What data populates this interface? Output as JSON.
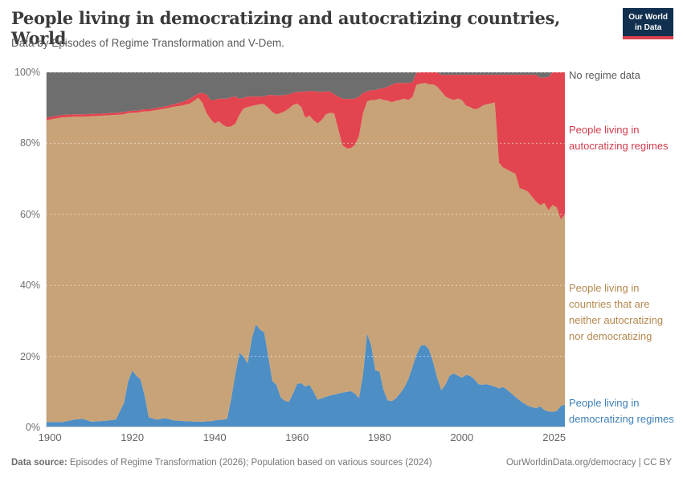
{
  "header": {
    "title": "People living in democratizing and autocratizing countries, World",
    "subtitle": "Data by Episodes of Regime Transformation and V-Dem."
  },
  "logo": {
    "line1": "Our World",
    "line2": "in Data",
    "bg_color": "#11304f",
    "bar_color": "#dc404b"
  },
  "legend": {
    "items": [
      {
        "id": "no_regime_data",
        "label": "No regime data",
        "color": "#5b5b5b"
      },
      {
        "id": "autocratizing",
        "label": "People living in autocratizing regimes",
        "color": "#d23c4c"
      },
      {
        "id": "neither",
        "label": "People living in countries that are neither autocratizing nor democratizing",
        "color": "#b5884e"
      },
      {
        "id": "democratizing",
        "label": "People living in democratizing regimes",
        "color": "#3f80b7"
      }
    ]
  },
  "footer": {
    "source_label": "Data source:",
    "source_text": " Episodes of Regime Transformation (2026); Population based on various sources (2024)",
    "right_text": "OurWorldinData.org/democracy | CC BY"
  },
  "chart_data": {
    "type": "area",
    "stacked": true,
    "title": "People living in democratizing and autocratizing countries, World",
    "unit": "%",
    "ylim": [
      0,
      100
    ],
    "x_range": [
      1899,
      2025
    ],
    "grid": "dashed-horizontal",
    "legend_position": "right",
    "y_ticks": [
      {
        "v": 0,
        "label": "0%"
      },
      {
        "v": 20,
        "label": "20%"
      },
      {
        "v": 40,
        "label": "40%"
      },
      {
        "v": 60,
        "label": "60%"
      },
      {
        "v": 80,
        "label": "80%"
      },
      {
        "v": 100,
        "label": "100%"
      }
    ],
    "x_ticks": [
      {
        "v": 1900,
        "label": "1900"
      },
      {
        "v": 1920,
        "label": "1920"
      },
      {
        "v": 1940,
        "label": "1940"
      },
      {
        "v": 1960,
        "label": "1960"
      },
      {
        "v": 1980,
        "label": "1980"
      },
      {
        "v": 2000,
        "label": "2000"
      },
      {
        "v": 2025,
        "label": "2025"
      }
    ],
    "x_years": [
      1899,
      1903,
      1906,
      1908,
      1910,
      1913,
      1916,
      1918,
      1919,
      1920,
      1921,
      1922,
      1923,
      1924,
      1926,
      1928,
      1930,
      1932,
      1934,
      1936,
      1937,
      1938,
      1939,
      1940,
      1941,
      1942,
      1943,
      1944,
      1945,
      1946,
      1947,
      1948,
      1949,
      1950,
      1951,
      1952,
      1953,
      1954,
      1955,
      1956,
      1957,
      1958,
      1959,
      1960,
      1961,
      1962,
      1963,
      1964,
      1965,
      1966,
      1967,
      1968,
      1969,
      1970,
      1971,
      1972,
      1973,
      1974,
      1975,
      1976,
      1977,
      1978,
      1979,
      1980,
      1981,
      1982,
      1983,
      1984,
      1985,
      1986,
      1987,
      1988,
      1989,
      1990,
      1991,
      1992,
      1993,
      1994,
      1995,
      1996,
      1997,
      1998,
      1999,
      2000,
      2001,
      2002,
      2003,
      2004,
      2005,
      2006,
      2007,
      2008,
      2009,
      2010,
      2011,
      2012,
      2013,
      2014,
      2015,
      2016,
      2017,
      2018,
      2019,
      2020,
      2021,
      2022,
      2023,
      2024,
      2025
    ],
    "series": [
      {
        "id": "democratizing",
        "name": "People living in democratizing regimes",
        "color": "#4d8ec5",
        "values": [
          1.5,
          1.5,
          2.2,
          2.4,
          1.6,
          1.8,
          2.2,
          7,
          13,
          16,
          14.5,
          13.5,
          9,
          2.8,
          2.2,
          2.6,
          2,
          1.8,
          1.7,
          1.6,
          1.6,
          1.7,
          1.7,
          2,
          2.1,
          2.2,
          2.4,
          8,
          15,
          21,
          20,
          18,
          25,
          29,
          27.5,
          26.8,
          20,
          13,
          12,
          8.5,
          7.5,
          7.2,
          9.5,
          12.2,
          12.5,
          11.5,
          12,
          10,
          7.8,
          8.2,
          8.6,
          9,
          9.2,
          9.5,
          9.8,
          10,
          10.2,
          9.6,
          8.2,
          15,
          26.5,
          23,
          16,
          15.8,
          10.5,
          7.6,
          7.4,
          8.2,
          9.6,
          11.2,
          13.6,
          17,
          20.5,
          23,
          23.2,
          22,
          18.5,
          14,
          10.5,
          12,
          14.5,
          15.2,
          14.6,
          14,
          14.8,
          14.5,
          13.6,
          12.2,
          12,
          12.2,
          11.8,
          11.5,
          11,
          11.4,
          10.6,
          9.6,
          8.6,
          7.6,
          6.8,
          6.1,
          5.7,
          5.4,
          5.9,
          4.9,
          4.5,
          4.4,
          4.6,
          6,
          6.4
        ]
      },
      {
        "id": "neither",
        "name": "People living in countries that are neither autocratizing nor democratizing",
        "color": "#c8a377",
        "values": [
          85,
          85.8,
          85.3,
          85.1,
          86,
          86,
          85.8,
          81.2,
          75.5,
          72.6,
          74.1,
          75.3,
          80,
          86.2,
          87.2,
          87.2,
          88.3,
          88.8,
          89.5,
          91.2,
          89.9,
          86.8,
          85.1,
          83.6,
          84.1,
          83,
          82.2,
          76.8,
          70.5,
          67,
          69.8,
          72.2,
          65.5,
          61.8,
          63.5,
          64.2,
          70,
          75.8,
          76.2,
          80,
          81.5,
          82.6,
          81.3,
          79,
          77.7,
          75.7,
          75.8,
          76.5,
          77.8,
          78.4,
          79.6,
          79.6,
          79.2,
          74.5,
          69.7,
          68.6,
          68.4,
          69.9,
          73.8,
          73.5,
          65.3,
          69.2,
          76.2,
          76.8,
          81.7,
          84.4,
          84.2,
          83.8,
          82.6,
          81.4,
          78.6,
          76,
          76,
          73.8,
          73.8,
          74.6,
          78.1,
          82,
          84.1,
          81.2,
          78.1,
          77,
          78,
          78.2,
          75.8,
          75.7,
          76,
          77.6,
          78.6,
          78.8,
          79.4,
          80,
          63.5,
          61.8,
          62,
          62.4,
          62.8,
          59.8,
          60.2,
          60.3,
          59.3,
          58.2,
          56.7,
          58.3,
          56.7,
          58.2,
          57.4,
          52.6,
          53.6
        ]
      },
      {
        "id": "autocratizing",
        "name": "People living in autocratizing regimes",
        "color": "#e2454f",
        "values": [
          0.7,
          0.7,
          0.7,
          0.7,
          0.7,
          0.6,
          0.6,
          0.6,
          0.6,
          0.6,
          0.6,
          0.6,
          0.6,
          0.6,
          0.6,
          0.6,
          0.7,
          1,
          1.4,
          1.2,
          2.7,
          5.3,
          5.4,
          6.6,
          6.4,
          7.4,
          8,
          8.2,
          7.7,
          4.6,
          3,
          3,
          2.7,
          2.4,
          2.2,
          2.2,
          3.6,
          4.8,
          5.3,
          5,
          4.6,
          4,
          3.4,
          3.3,
          4.3,
          7.4,
          6.9,
          8.2,
          8.9,
          7.9,
          6.4,
          6,
          5.4,
          9.2,
          13.1,
          13.9,
          13.9,
          13.1,
          11.2,
          5.7,
          2.8,
          2.8,
          2.8,
          2.8,
          3.3,
          4,
          4.9,
          5,
          4.8,
          4.4,
          4.8,
          4.2,
          3.4,
          3.2,
          3,
          3.4,
          3.4,
          4,
          4.7,
          6.1,
          6.7,
          7.1,
          6.7,
          7.1,
          8.7,
          9.1,
          9.7,
          9.5,
          8.7,
          8.3,
          8.1,
          7.8,
          24.8,
          26.1,
          26.7,
          27.3,
          27.9,
          31.9,
          32.3,
          32.9,
          34.3,
          35.7,
          35.9,
          35.3,
          37.5,
          37.4,
          38,
          41.4,
          40
        ]
      },
      {
        "id": "no_regime_data",
        "name": "No regime data",
        "color": "#6e6e6e",
        "values": [
          12.8,
          12,
          11.8,
          11.8,
          11.7,
          11.6,
          11.4,
          11.2,
          10.9,
          10.8,
          10.8,
          10.6,
          10.4,
          10.4,
          10,
          9.6,
          9,
          8.4,
          7.4,
          6,
          5.8,
          6.2,
          7.8,
          7.8,
          7.4,
          7.4,
          7.4,
          7,
          6.8,
          7.4,
          7.2,
          6.8,
          6.8,
          6.8,
          6.8,
          6.8,
          6.4,
          6.4,
          6.5,
          6.5,
          6.4,
          6.2,
          5.8,
          5.5,
          5.5,
          5.4,
          5.3,
          5.3,
          5.5,
          5.5,
          5.4,
          5.4,
          6.2,
          6.8,
          7.4,
          7.5,
          7.5,
          7.4,
          6.8,
          5.8,
          5.4,
          5,
          5,
          4.6,
          4.5,
          4,
          3.5,
          3,
          3,
          3,
          3,
          2.8,
          0.1,
          0,
          0,
          0,
          0,
          0,
          0.7,
          0.7,
          0.7,
          0.7,
          0.7,
          0.7,
          0.7,
          0.7,
          0.7,
          0.7,
          0.7,
          0.7,
          0.7,
          0.7,
          0.7,
          0.7,
          0.7,
          0.7,
          0.7,
          0.7,
          0.7,
          0.7,
          0.7,
          0.7,
          1.5,
          1.5,
          1.3,
          0,
          0,
          0,
          0
        ]
      }
    ]
  }
}
